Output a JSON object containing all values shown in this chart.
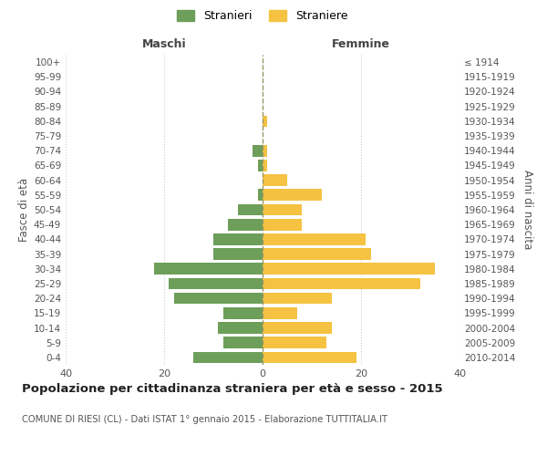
{
  "age_groups": [
    "0-4",
    "5-9",
    "10-14",
    "15-19",
    "20-24",
    "25-29",
    "30-34",
    "35-39",
    "40-44",
    "45-49",
    "50-54",
    "55-59",
    "60-64",
    "65-69",
    "70-74",
    "75-79",
    "80-84",
    "85-89",
    "90-94",
    "95-99",
    "100+"
  ],
  "birth_years": [
    "2010-2014",
    "2005-2009",
    "2000-2004",
    "1995-1999",
    "1990-1994",
    "1985-1989",
    "1980-1984",
    "1975-1979",
    "1970-1974",
    "1965-1969",
    "1960-1964",
    "1955-1959",
    "1950-1954",
    "1945-1949",
    "1940-1944",
    "1935-1939",
    "1930-1934",
    "1925-1929",
    "1920-1924",
    "1915-1919",
    "≤ 1914"
  ],
  "maschi": [
    14,
    8,
    9,
    8,
    18,
    19,
    22,
    10,
    10,
    7,
    5,
    1,
    0,
    1,
    2,
    0,
    0,
    0,
    0,
    0,
    0
  ],
  "femmine": [
    19,
    13,
    14,
    7,
    14,
    32,
    35,
    22,
    21,
    8,
    8,
    12,
    5,
    1,
    1,
    0,
    1,
    0,
    0,
    0,
    0
  ],
  "maschi_color": "#6d9e5a",
  "femmine_color": "#f5c242",
  "background_color": "#ffffff",
  "grid_color": "#cccccc",
  "title": "Popolazione per cittadinanza straniera per età e sesso - 2015",
  "subtitle": "COMUNE DI RIESI (CL) - Dati ISTAT 1° gennaio 2015 - Elaborazione TUTTITALIA.IT",
  "xlabel_left": "Maschi",
  "xlabel_right": "Femmine",
  "ylabel_left": "Fasce di età",
  "ylabel_right": "Anni di nascita",
  "legend_maschi": "Stranieri",
  "legend_femmine": "Straniere",
  "xlim": 40
}
